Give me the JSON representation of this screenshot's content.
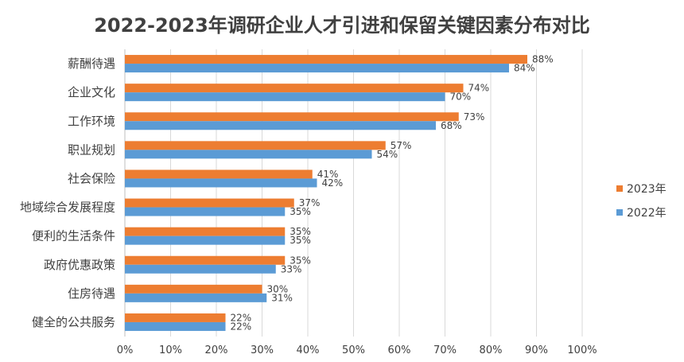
{
  "chart_data": {
    "type": "bar",
    "orientation": "horizontal",
    "title": "2022-2023年调研企业人才引进和保留关键因素分布对比",
    "categories": [
      "薪酬待遇",
      "企业文化",
      "工作环境",
      "职业规划",
      "社会保险",
      "地域综合发展程度",
      "便利的生活条件",
      "政府优惠政策",
      "住房待遇",
      "健全的公共服务"
    ],
    "series": [
      {
        "name": "2023年",
        "color": "#ED7D31",
        "values": [
          88,
          74,
          73,
          57,
          41,
          37,
          35,
          35,
          30,
          22
        ],
        "labels": [
          "88%",
          "74%",
          "73%",
          "57%",
          "41%",
          "37%",
          "35%",
          "35%",
          "30%",
          "22%"
        ]
      },
      {
        "name": "2022年",
        "color": "#5B9BD5",
        "values": [
          84,
          70,
          68,
          54,
          42,
          35,
          35,
          33,
          31,
          22
        ],
        "labels": [
          "84%",
          "70%",
          "68%",
          "54%",
          "42%",
          "35%",
          "35%",
          "33%",
          "31%",
          "22%"
        ]
      }
    ],
    "xlim": [
      0,
      100
    ],
    "xticks": [
      "0%",
      "10%",
      "20%",
      "30%",
      "40%",
      "50%",
      "60%",
      "70%",
      "80%",
      "90%",
      "100%"
    ],
    "grid": true,
    "legend_position": "right"
  }
}
